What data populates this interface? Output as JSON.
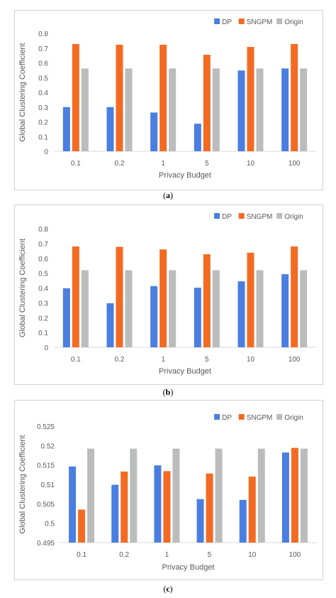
{
  "chart_data": [
    {
      "type": "bar",
      "caption": "a",
      "categories": [
        "0.1",
        "0.2",
        "1",
        "5",
        "10",
        "100"
      ],
      "series": [
        {
          "name": "DP",
          "color": "#4a7ee0",
          "values": [
            0.3,
            0.3,
            0.263,
            0.187,
            0.548,
            0.562
          ]
        },
        {
          "name": "SNGPM",
          "color": "#f36b22",
          "values": [
            0.728,
            0.723,
            0.723,
            0.655,
            0.708,
            0.728
          ]
        },
        {
          "name": "Origin",
          "color": "#bbbdbd",
          "values": [
            0.562,
            0.562,
            0.562,
            0.562,
            0.562,
            0.562
          ]
        }
      ],
      "xlabel": "Privacy Budget",
      "ylabel": "Global Clustering Coefficient",
      "ylim": [
        0,
        0.8
      ],
      "yticks": [
        "0",
        "0.1",
        "0.2",
        "0.3",
        "0.4",
        "0.5",
        "0.6",
        "0.7",
        "0.8"
      ],
      "legend": "top-right",
      "grid": false
    },
    {
      "type": "bar",
      "caption": "b",
      "categories": [
        "0.1",
        "0.2",
        "1",
        "5",
        "10",
        "100"
      ],
      "series": [
        {
          "name": "DP",
          "color": "#4a7ee0",
          "values": [
            0.398,
            0.297,
            0.413,
            0.402,
            0.445,
            0.493
          ]
        },
        {
          "name": "SNGPM",
          "color": "#f36b22",
          "values": [
            0.68,
            0.678,
            0.66,
            0.628,
            0.638,
            0.68
          ]
        },
        {
          "name": "Origin",
          "color": "#bbbdbd",
          "values": [
            0.52,
            0.52,
            0.52,
            0.52,
            0.52,
            0.52
          ]
        }
      ],
      "xlabel": "Privacy Budget",
      "ylabel": "Global Clustering Coefficient",
      "ylim": [
        0,
        0.8
      ],
      "yticks": [
        "0",
        "0.1",
        "0.2",
        "0.3",
        "0.4",
        "0.5",
        "0.6",
        "0.7",
        "0.8"
      ],
      "legend": "top-right",
      "grid": false
    },
    {
      "type": "bar",
      "caption": "c",
      "categories": [
        "0.1",
        "0.2",
        "1",
        "5",
        "10",
        "100"
      ],
      "series": [
        {
          "name": "DP",
          "color": "#4a7ee0",
          "values": [
            0.5146,
            0.5099,
            0.5149,
            0.5062,
            0.506,
            0.5182
          ]
        },
        {
          "name": "SNGPM",
          "color": "#f36b22",
          "values": [
            0.5035,
            0.5133,
            0.5134,
            0.5128,
            0.512,
            0.5194
          ]
        },
        {
          "name": "Origin",
          "color": "#bbbdbd",
          "values": [
            0.5192,
            0.5192,
            0.5192,
            0.5192,
            0.5192,
            0.5192
          ]
        }
      ],
      "xlabel": "Privacy Budget",
      "ylabel": "Global Clustering Coefficient",
      "ylim": [
        0.495,
        0.525
      ],
      "yticks": [
        "0.495",
        "0.5",
        "0.505",
        "0.51",
        "0.515",
        "0.52",
        "0.525"
      ],
      "legend": "top-right",
      "grid": false
    }
  ]
}
